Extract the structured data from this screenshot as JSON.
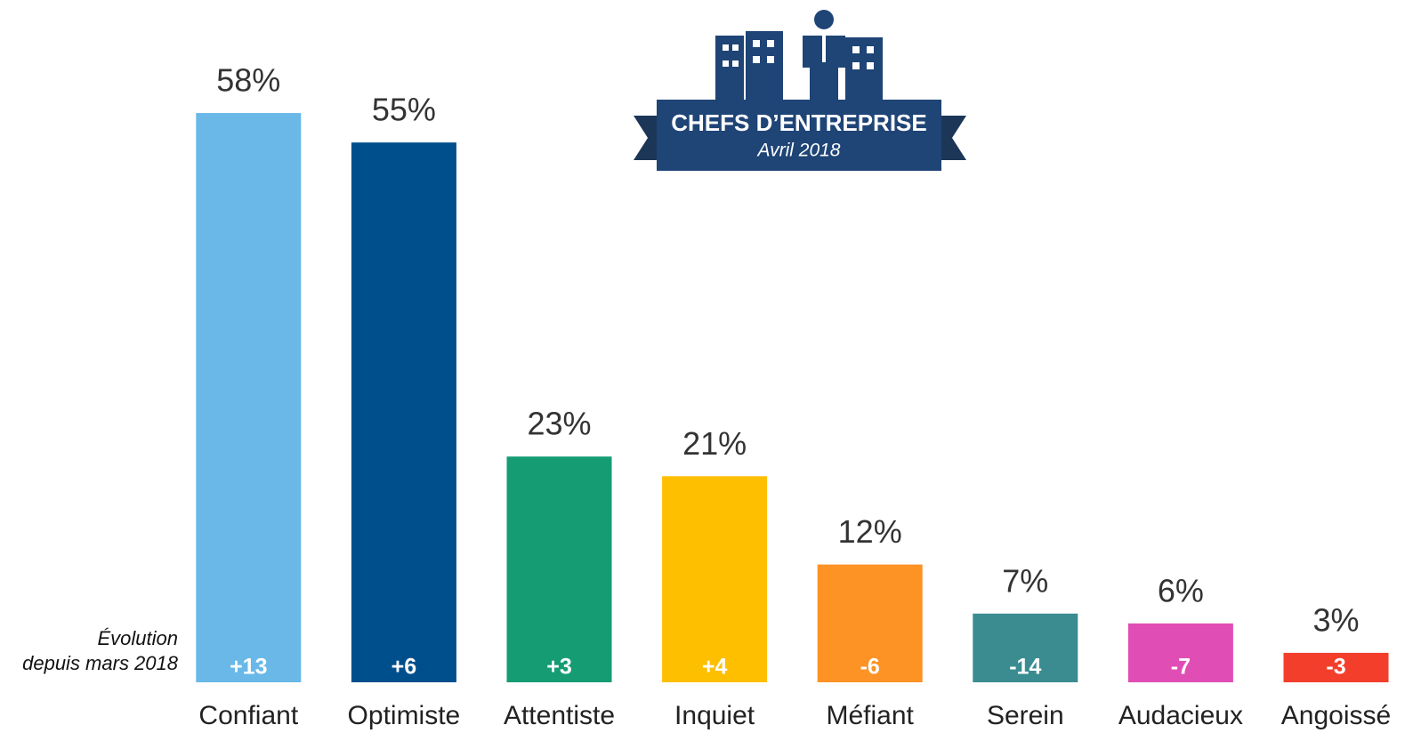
{
  "chart_data": {
    "type": "bar",
    "badge": {
      "title": "CHEFS D’ENTREPRISE",
      "subtitle": "Avril 2018"
    },
    "evolution_caption": [
      "Évolution",
      "depuis mars 2018"
    ],
    "categories": [
      "Confiant",
      "Optimiste",
      "Attentiste",
      "Inquiet",
      "Méfiant",
      "Serein",
      "Audacieux",
      "Angoissé"
    ],
    "values": [
      58,
      55,
      23,
      21,
      12,
      7,
      6,
      3
    ],
    "value_labels": [
      "58%",
      "55%",
      "23%",
      "21%",
      "12%",
      "7%",
      "6%",
      "3%"
    ],
    "evolution": [
      "+13",
      "+6",
      "+3",
      "+4",
      "-6",
      "-14",
      "-7",
      "-3"
    ],
    "colors": [
      "#69b8e8",
      "#004f8d",
      "#169c73",
      "#fdbf00",
      "#fd9225",
      "#3a8c91",
      "#e04db5",
      "#f33e2c"
    ],
    "ylim": [
      0,
      60
    ]
  }
}
